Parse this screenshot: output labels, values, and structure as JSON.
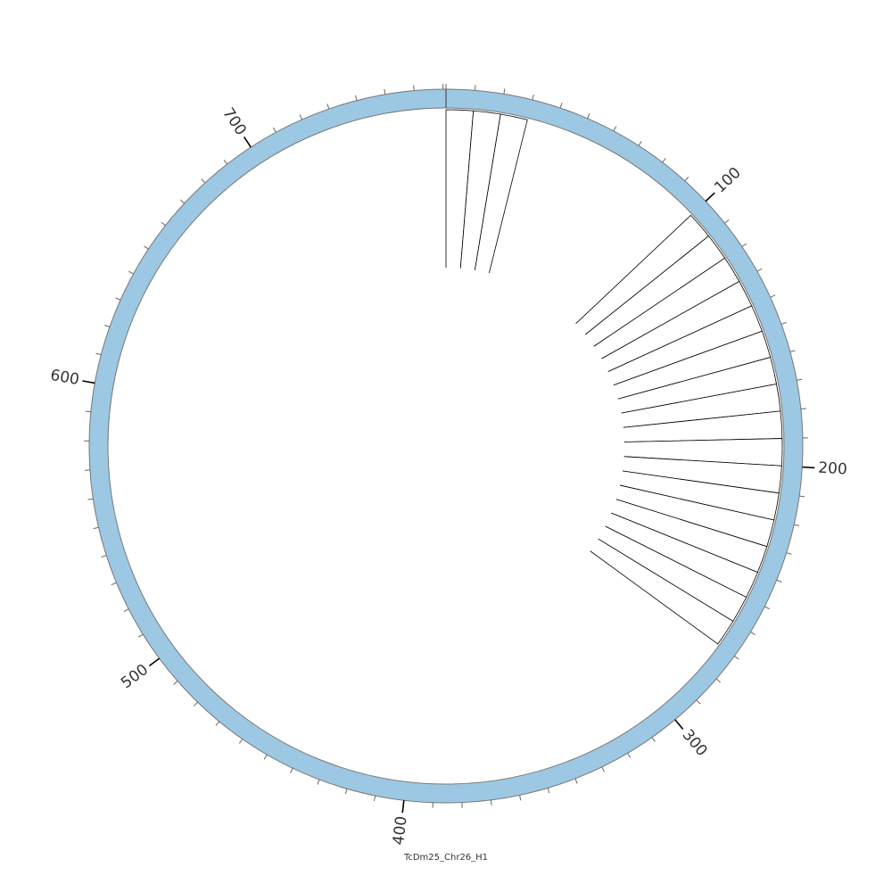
{
  "chart_data": {
    "type": "circos",
    "ideogram": {
      "name": "TcDm25_Chr26_H1",
      "length": 771,
      "fill_color": "#9dc8e3",
      "stroke_color": "#777777"
    },
    "ticks": {
      "minor_spacing": 10,
      "major_spacing": 100,
      "major_labels": [
        "100",
        "200",
        "300",
        "400",
        "500",
        "600",
        "700"
      ]
    },
    "histogram": {
      "fill_color": "#ffffff",
      "stroke_color": "#000000",
      "bin_size": 10,
      "bins": [
        {
          "start": 0,
          "end": 10,
          "value": 1
        },
        {
          "start": 10,
          "end": 20,
          "value": 1
        },
        {
          "start": 20,
          "end": 30,
          "value": 1
        },
        {
          "start": 100,
          "end": 110,
          "value": 1
        },
        {
          "start": 110,
          "end": 120,
          "value": 1
        },
        {
          "start": 120,
          "end": 130,
          "value": 1
        },
        {
          "start": 130,
          "end": 140,
          "value": 1
        },
        {
          "start": 140,
          "end": 150,
          "value": 1
        },
        {
          "start": 150,
          "end": 160,
          "value": 1
        },
        {
          "start": 160,
          "end": 170,
          "value": 1
        },
        {
          "start": 170,
          "end": 180,
          "value": 1
        },
        {
          "start": 180,
          "end": 190,
          "value": 1
        },
        {
          "start": 190,
          "end": 200,
          "value": 1
        },
        {
          "start": 200,
          "end": 210,
          "value": 1
        },
        {
          "start": 210,
          "end": 220,
          "value": 1
        },
        {
          "start": 220,
          "end": 230,
          "value": 1
        },
        {
          "start": 230,
          "end": 240,
          "value": 1
        },
        {
          "start": 240,
          "end": 250,
          "value": 1
        },
        {
          "start": 250,
          "end": 260,
          "value": 1
        },
        {
          "start": 260,
          "end": 270,
          "value": 1
        }
      ]
    }
  }
}
